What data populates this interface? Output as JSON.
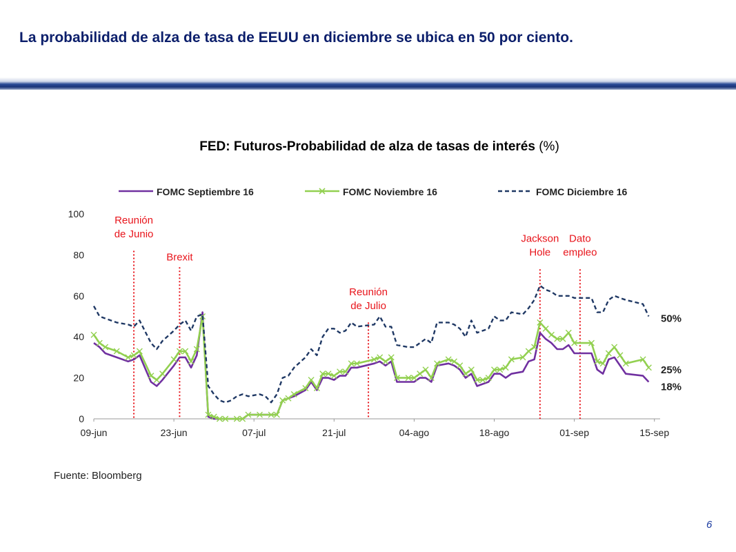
{
  "slide": {
    "title": "La probabilidad de alza de tasa de EEUU en diciembre se ubica en 50 por ciento.",
    "source": "Fuente: Bloomberg",
    "page_number": "6"
  },
  "colors": {
    "title": "#0b1e6b",
    "header_bar": "#1f3f88",
    "fomc_sep": "#7030a0",
    "fomc_nov": "#92d050",
    "fomc_dic": "#1f3864",
    "event_lines": "#e8141b"
  },
  "chart_data": {
    "type": "line",
    "title": "FED: Futuros-Probabilidad de alza de tasas de interés (%)",
    "xlabel": "",
    "ylabel": "",
    "ylim": [
      0,
      100
    ],
    "yticks": [
      0,
      20,
      40,
      60,
      80,
      100
    ],
    "xlim": [
      "2016-06-09",
      "2016-09-16"
    ],
    "xticks": [
      {
        "date": "2016-06-09",
        "label": "09-jun"
      },
      {
        "date": "2016-06-23",
        "label": "23-jun"
      },
      {
        "date": "2016-07-07",
        "label": "07-jul"
      },
      {
        "date": "2016-07-21",
        "label": "21-jul"
      },
      {
        "date": "2016-08-04",
        "label": "04-ago"
      },
      {
        "date": "2016-08-18",
        "label": "18-ago"
      },
      {
        "date": "2016-09-01",
        "label": "01-sep"
      },
      {
        "date": "2016-09-15",
        "label": "15-sep"
      }
    ],
    "grid": false,
    "legend_position": "top",
    "series": [
      {
        "name": "FOMC Septiembre 16",
        "color": "#7030a0",
        "style": "solid",
        "marker": "none",
        "end_label": "18%",
        "points": [
          [
            "2016-06-09",
            37
          ],
          [
            "2016-06-10",
            35
          ],
          [
            "2016-06-11",
            32
          ],
          [
            "2016-06-13",
            30
          ],
          [
            "2016-06-15",
            28
          ],
          [
            "2016-06-16",
            29
          ],
          [
            "2016-06-17",
            31
          ],
          [
            "2016-06-19",
            18
          ],
          [
            "2016-06-20",
            16
          ],
          [
            "2016-06-21",
            19
          ],
          [
            "2016-06-23",
            26
          ],
          [
            "2016-06-24",
            30
          ],
          [
            "2016-06-25",
            30
          ],
          [
            "2016-06-26",
            25
          ],
          [
            "2016-06-27",
            31
          ],
          [
            "2016-06-28",
            52
          ],
          [
            "2016-06-29",
            1
          ],
          [
            "2016-06-30",
            0
          ],
          [
            "2016-07-01",
            0
          ],
          [
            "2016-07-03",
            0
          ],
          [
            "2016-07-04",
            0
          ],
          [
            "2016-07-05",
            0
          ],
          [
            "2016-07-06",
            2
          ],
          [
            "2016-07-08",
            2
          ],
          [
            "2016-07-10",
            2
          ],
          [
            "2016-07-11",
            2
          ],
          [
            "2016-07-12",
            9
          ],
          [
            "2016-07-13",
            10
          ],
          [
            "2016-07-14",
            11
          ],
          [
            "2016-07-16",
            14
          ],
          [
            "2016-07-17",
            18
          ],
          [
            "2016-07-18",
            14
          ],
          [
            "2016-07-19",
            20
          ],
          [
            "2016-07-20",
            20
          ],
          [
            "2016-07-21",
            19
          ],
          [
            "2016-07-22",
            21
          ],
          [
            "2016-07-23",
            21
          ],
          [
            "2016-07-24",
            25
          ],
          [
            "2016-07-25",
            25
          ],
          [
            "2016-07-28",
            27
          ],
          [
            "2016-07-29",
            28
          ],
          [
            "2016-07-30",
            26
          ],
          [
            "2016-07-31",
            28
          ],
          [
            "2016-08-01",
            18
          ],
          [
            "2016-08-03",
            18
          ],
          [
            "2016-08-04",
            18
          ],
          [
            "2016-08-05",
            20
          ],
          [
            "2016-08-06",
            20
          ],
          [
            "2016-08-07",
            18
          ],
          [
            "2016-08-08",
            26
          ],
          [
            "2016-08-10",
            27
          ],
          [
            "2016-08-11",
            26
          ],
          [
            "2016-08-12",
            24
          ],
          [
            "2016-08-13",
            20
          ],
          [
            "2016-08-14",
            22
          ],
          [
            "2016-08-15",
            16
          ],
          [
            "2016-08-16",
            17
          ],
          [
            "2016-08-17",
            18
          ],
          [
            "2016-08-18",
            22
          ],
          [
            "2016-08-19",
            22
          ],
          [
            "2016-08-20",
            20
          ],
          [
            "2016-08-21",
            22
          ],
          [
            "2016-08-23",
            23
          ],
          [
            "2016-08-24",
            28
          ],
          [
            "2016-08-25",
            29
          ],
          [
            "2016-08-26",
            42
          ],
          [
            "2016-08-27",
            39
          ],
          [
            "2016-08-28",
            37
          ],
          [
            "2016-08-29",
            34
          ],
          [
            "2016-08-30",
            34
          ],
          [
            "2016-08-31",
            36
          ],
          [
            "2016-09-01",
            32
          ],
          [
            "2016-09-04",
            32
          ],
          [
            "2016-09-05",
            24
          ],
          [
            "2016-09-06",
            22
          ],
          [
            "2016-09-07",
            29
          ],
          [
            "2016-09-08",
            30
          ],
          [
            "2016-09-09",
            26
          ],
          [
            "2016-09-10",
            22
          ],
          [
            "2016-09-13",
            21
          ],
          [
            "2016-09-14",
            18
          ]
        ]
      },
      {
        "name": "FOMC Noviembre 16",
        "color": "#92d050",
        "style": "solid",
        "marker": "x",
        "end_label": "25%",
        "points": [
          [
            "2016-06-09",
            41
          ],
          [
            "2016-06-10",
            37
          ],
          [
            "2016-06-11",
            35
          ],
          [
            "2016-06-13",
            33
          ],
          [
            "2016-06-15",
            30
          ],
          [
            "2016-06-16",
            31
          ],
          [
            "2016-06-17",
            33
          ],
          [
            "2016-06-19",
            21
          ],
          [
            "2016-06-20",
            19
          ],
          [
            "2016-06-21",
            22
          ],
          [
            "2016-06-23",
            29
          ],
          [
            "2016-06-24",
            33
          ],
          [
            "2016-06-25",
            33
          ],
          [
            "2016-06-26",
            28
          ],
          [
            "2016-06-27",
            34
          ],
          [
            "2016-06-28",
            50
          ],
          [
            "2016-06-29",
            2
          ],
          [
            "2016-06-30",
            1
          ],
          [
            "2016-07-01",
            0
          ],
          [
            "2016-07-02",
            0
          ],
          [
            "2016-07-04",
            0
          ],
          [
            "2016-07-05",
            0
          ],
          [
            "2016-07-06",
            2
          ],
          [
            "2016-07-08",
            2
          ],
          [
            "2016-07-10",
            2
          ],
          [
            "2016-07-11",
            2
          ],
          [
            "2016-07-12",
            9
          ],
          [
            "2016-07-13",
            10
          ],
          [
            "2016-07-14",
            12
          ],
          [
            "2016-07-16",
            15
          ],
          [
            "2016-07-17",
            19
          ],
          [
            "2016-07-18",
            15
          ],
          [
            "2016-07-19",
            22
          ],
          [
            "2016-07-20",
            22
          ],
          [
            "2016-07-21",
            21
          ],
          [
            "2016-07-22",
            23
          ],
          [
            "2016-07-23",
            23
          ],
          [
            "2016-07-24",
            27
          ],
          [
            "2016-07-25",
            27
          ],
          [
            "2016-07-28",
            29
          ],
          [
            "2016-07-29",
            30
          ],
          [
            "2016-07-30",
            28
          ],
          [
            "2016-07-31",
            30
          ],
          [
            "2016-08-01",
            20
          ],
          [
            "2016-08-03",
            20
          ],
          [
            "2016-08-04",
            20
          ],
          [
            "2016-08-05",
            22
          ],
          [
            "2016-08-06",
            24
          ],
          [
            "2016-08-07",
            20
          ],
          [
            "2016-08-08",
            27
          ],
          [
            "2016-08-10",
            29
          ],
          [
            "2016-08-11",
            28
          ],
          [
            "2016-08-12",
            26
          ],
          [
            "2016-08-13",
            22
          ],
          [
            "2016-08-14",
            24
          ],
          [
            "2016-08-15",
            19
          ],
          [
            "2016-08-16",
            19
          ],
          [
            "2016-08-17",
            20
          ],
          [
            "2016-08-18",
            24
          ],
          [
            "2016-08-19",
            24
          ],
          [
            "2016-08-20",
            25
          ],
          [
            "2016-08-21",
            29
          ],
          [
            "2016-08-23",
            30
          ],
          [
            "2016-08-24",
            33
          ],
          [
            "2016-08-25",
            35
          ],
          [
            "2016-08-26",
            47
          ],
          [
            "2016-08-27",
            44
          ],
          [
            "2016-08-28",
            41
          ],
          [
            "2016-08-29",
            39
          ],
          [
            "2016-08-30",
            39
          ],
          [
            "2016-08-31",
            42
          ],
          [
            "2016-09-01",
            37
          ],
          [
            "2016-09-04",
            37
          ],
          [
            "2016-09-05",
            28
          ],
          [
            "2016-09-06",
            27
          ],
          [
            "2016-09-07",
            32
          ],
          [
            "2016-09-08",
            35
          ],
          [
            "2016-09-09",
            31
          ],
          [
            "2016-09-10",
            27
          ],
          [
            "2016-09-13",
            29
          ],
          [
            "2016-09-14",
            25
          ]
        ]
      },
      {
        "name": "FOMC Diciembre 16",
        "color": "#1f3864",
        "style": "dashed",
        "marker": "none",
        "end_label": "50%",
        "points": [
          [
            "2016-06-09",
            55
          ],
          [
            "2016-06-10",
            50
          ],
          [
            "2016-06-11",
            49
          ],
          [
            "2016-06-13",
            47
          ],
          [
            "2016-06-15",
            46
          ],
          [
            "2016-06-16",
            45
          ],
          [
            "2016-06-17",
            48
          ],
          [
            "2016-06-19",
            37
          ],
          [
            "2016-06-20",
            34
          ],
          [
            "2016-06-21",
            38
          ],
          [
            "2016-06-23",
            43
          ],
          [
            "2016-06-24",
            46
          ],
          [
            "2016-06-25",
            48
          ],
          [
            "2016-06-26",
            43
          ],
          [
            "2016-06-27",
            50
          ],
          [
            "2016-06-28",
            51
          ],
          [
            "2016-06-29",
            16
          ],
          [
            "2016-06-30",
            12
          ],
          [
            "2016-07-01",
            9
          ],
          [
            "2016-07-02",
            8
          ],
          [
            "2016-07-03",
            9
          ],
          [
            "2016-07-04",
            11
          ],
          [
            "2016-07-05",
            12
          ],
          [
            "2016-07-06",
            11
          ],
          [
            "2016-07-08",
            12
          ],
          [
            "2016-07-09",
            11
          ],
          [
            "2016-07-10",
            8
          ],
          [
            "2016-07-11",
            12
          ],
          [
            "2016-07-12",
            20
          ],
          [
            "2016-07-13",
            21
          ],
          [
            "2016-07-14",
            25
          ],
          [
            "2016-07-16",
            30
          ],
          [
            "2016-07-17",
            34
          ],
          [
            "2016-07-18",
            31
          ],
          [
            "2016-07-19",
            40
          ],
          [
            "2016-07-20",
            44
          ],
          [
            "2016-07-21",
            44
          ],
          [
            "2016-07-22",
            42
          ],
          [
            "2016-07-23",
            43
          ],
          [
            "2016-07-24",
            47
          ],
          [
            "2016-07-25",
            45
          ],
          [
            "2016-07-28",
            46
          ],
          [
            "2016-07-29",
            50
          ],
          [
            "2016-07-30",
            45
          ],
          [
            "2016-07-31",
            45
          ],
          [
            "2016-08-01",
            36
          ],
          [
            "2016-08-03",
            35
          ],
          [
            "2016-08-04",
            35
          ],
          [
            "2016-08-05",
            37
          ],
          [
            "2016-08-06",
            39
          ],
          [
            "2016-08-07",
            37
          ],
          [
            "2016-08-08",
            47
          ],
          [
            "2016-08-10",
            47
          ],
          [
            "2016-08-11",
            46
          ],
          [
            "2016-08-12",
            44
          ],
          [
            "2016-08-13",
            40
          ],
          [
            "2016-08-14",
            48
          ],
          [
            "2016-08-15",
            42
          ],
          [
            "2016-08-16",
            43
          ],
          [
            "2016-08-17",
            44
          ],
          [
            "2016-08-18",
            50
          ],
          [
            "2016-08-19",
            48
          ],
          [
            "2016-08-20",
            48
          ],
          [
            "2016-08-21",
            52
          ],
          [
            "2016-08-23",
            51
          ],
          [
            "2016-08-24",
            54
          ],
          [
            "2016-08-25",
            58
          ],
          [
            "2016-08-26",
            65
          ],
          [
            "2016-08-27",
            63
          ],
          [
            "2016-08-28",
            62
          ],
          [
            "2016-08-29",
            60
          ],
          [
            "2016-08-30",
            60
          ],
          [
            "2016-08-31",
            60
          ],
          [
            "2016-09-01",
            59
          ],
          [
            "2016-09-04",
            59
          ],
          [
            "2016-09-05",
            52
          ],
          [
            "2016-09-06",
            52
          ],
          [
            "2016-09-07",
            58
          ],
          [
            "2016-09-08",
            60
          ],
          [
            "2016-09-09",
            59
          ],
          [
            "2016-09-10",
            58
          ],
          [
            "2016-09-13",
            56
          ],
          [
            "2016-09-14",
            50
          ]
        ]
      }
    ],
    "annotations": [
      {
        "date": "2016-06-16",
        "text": "Reunión de Junio",
        "lines": [
          "Reunión",
          "de Junio"
        ],
        "label_ymax": 100
      },
      {
        "date": "2016-06-24",
        "text": "Brexit",
        "lines": [
          "Brexit"
        ],
        "label_ymax": 82
      },
      {
        "date": "2016-07-27",
        "text": "Reunión de Julio",
        "lines": [
          "Reunión",
          "de Julio"
        ],
        "label_ymax": 65
      },
      {
        "date": "2016-08-26",
        "text": "Jackson Hole",
        "lines": [
          "Jackson",
          "Hole"
        ],
        "label_ymax": 91
      },
      {
        "date": "2016-09-02",
        "text": "Dato empleo",
        "lines": [
          "Dato",
          "empleo"
        ],
        "label_ymax": 91
      }
    ]
  }
}
